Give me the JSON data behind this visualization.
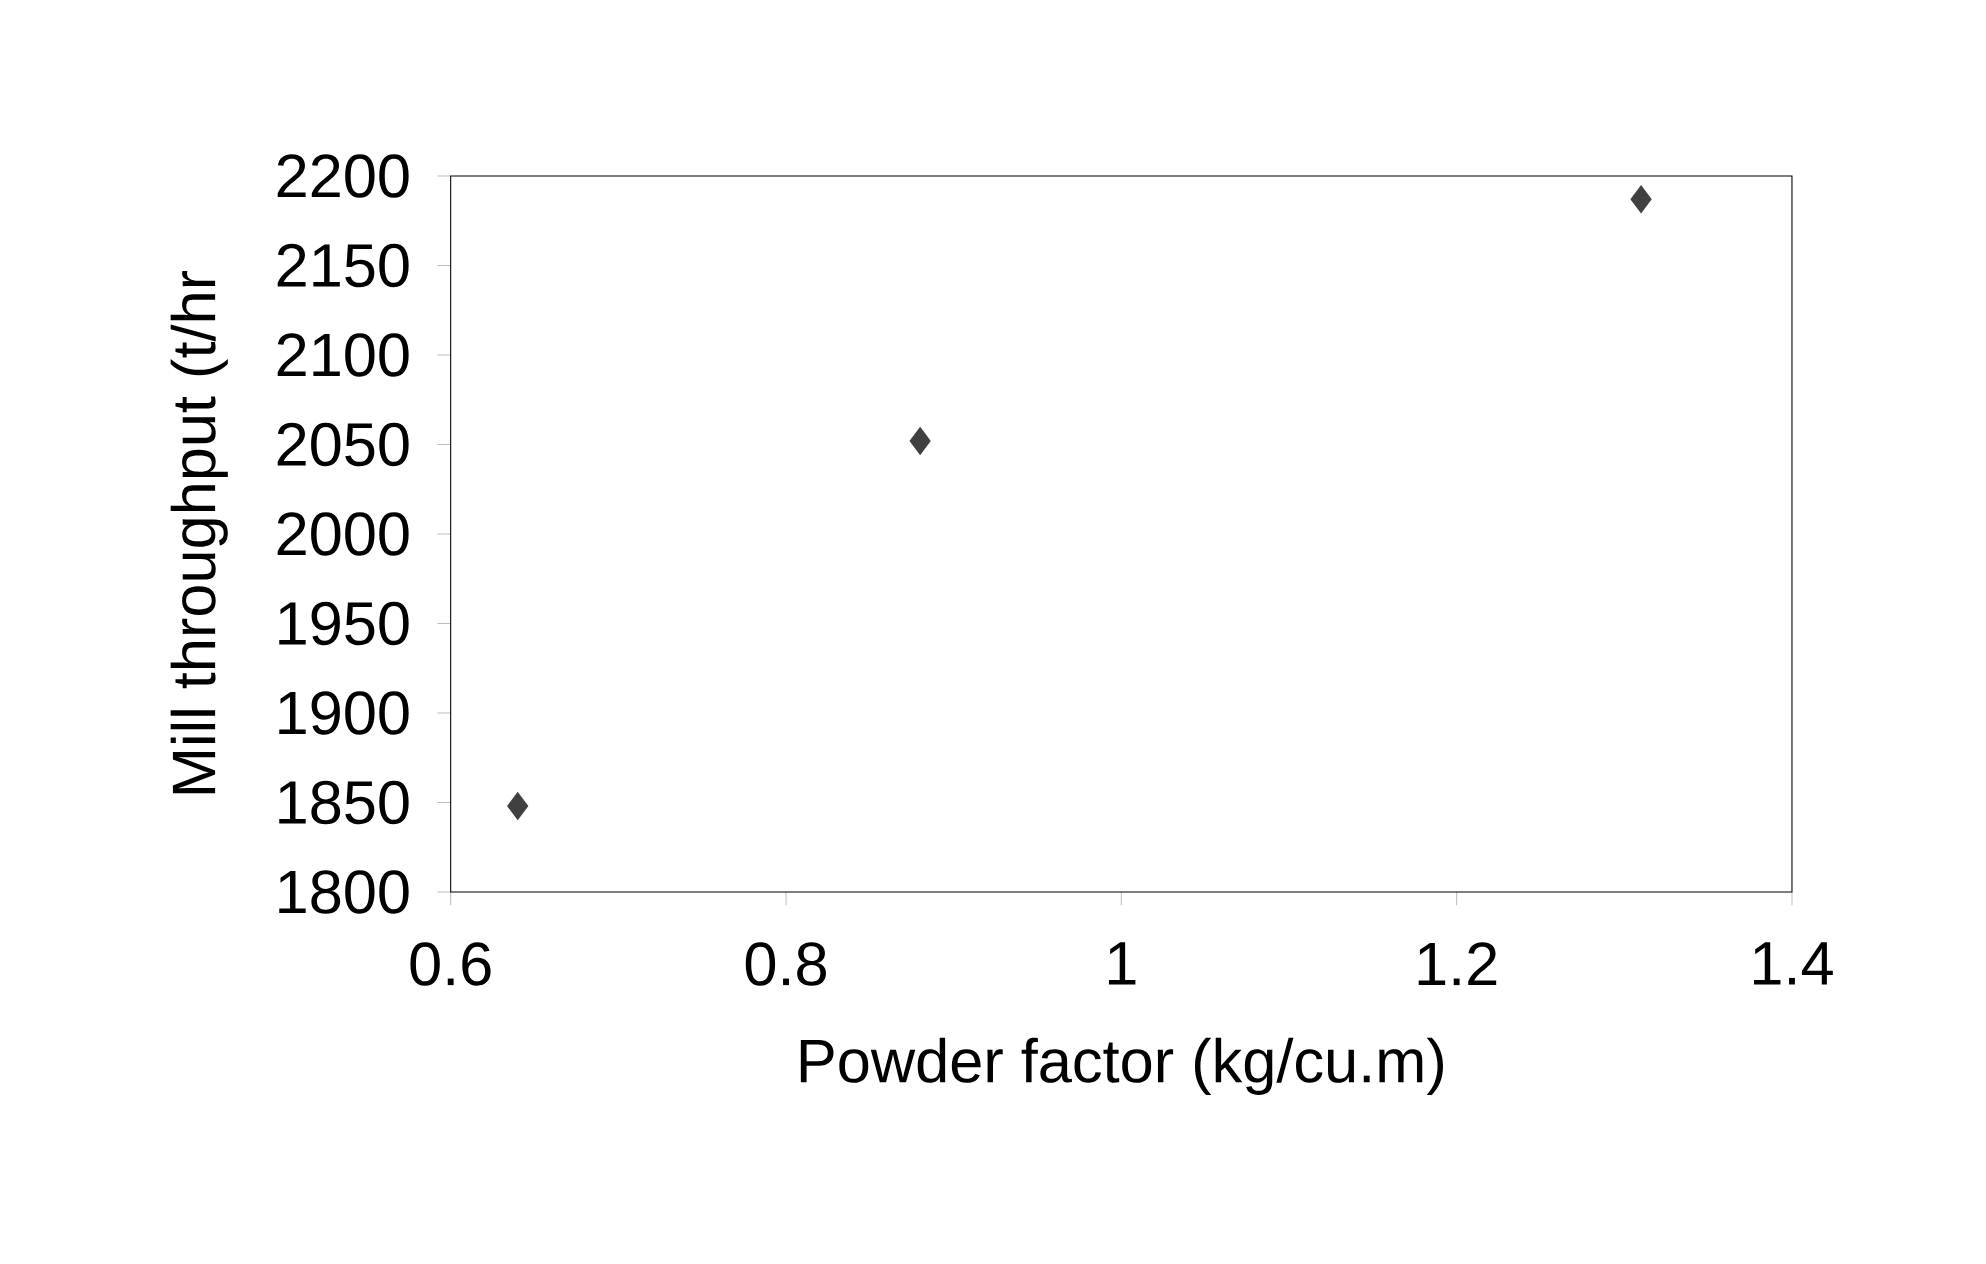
{
  "chart_data": {
    "type": "scatter",
    "xlabel": "Powder factor (kg/cu.m)",
    "ylabel": "Mill throughput (t/hr",
    "x": [
      0.64,
      0.88,
      1.31
    ],
    "values": [
      1848,
      2052,
      2187
    ],
    "color": "#404040",
    "marker": "diamond",
    "xlim": [
      0.6,
      1.4
    ],
    "xticks": [
      0.6,
      0.8,
      1,
      1.2,
      1.4
    ],
    "ylim": [
      1800,
      2200
    ],
    "yticks": [
      1800,
      1850,
      1900,
      1950,
      2000,
      2050,
      2100,
      2150,
      2200
    ]
  }
}
